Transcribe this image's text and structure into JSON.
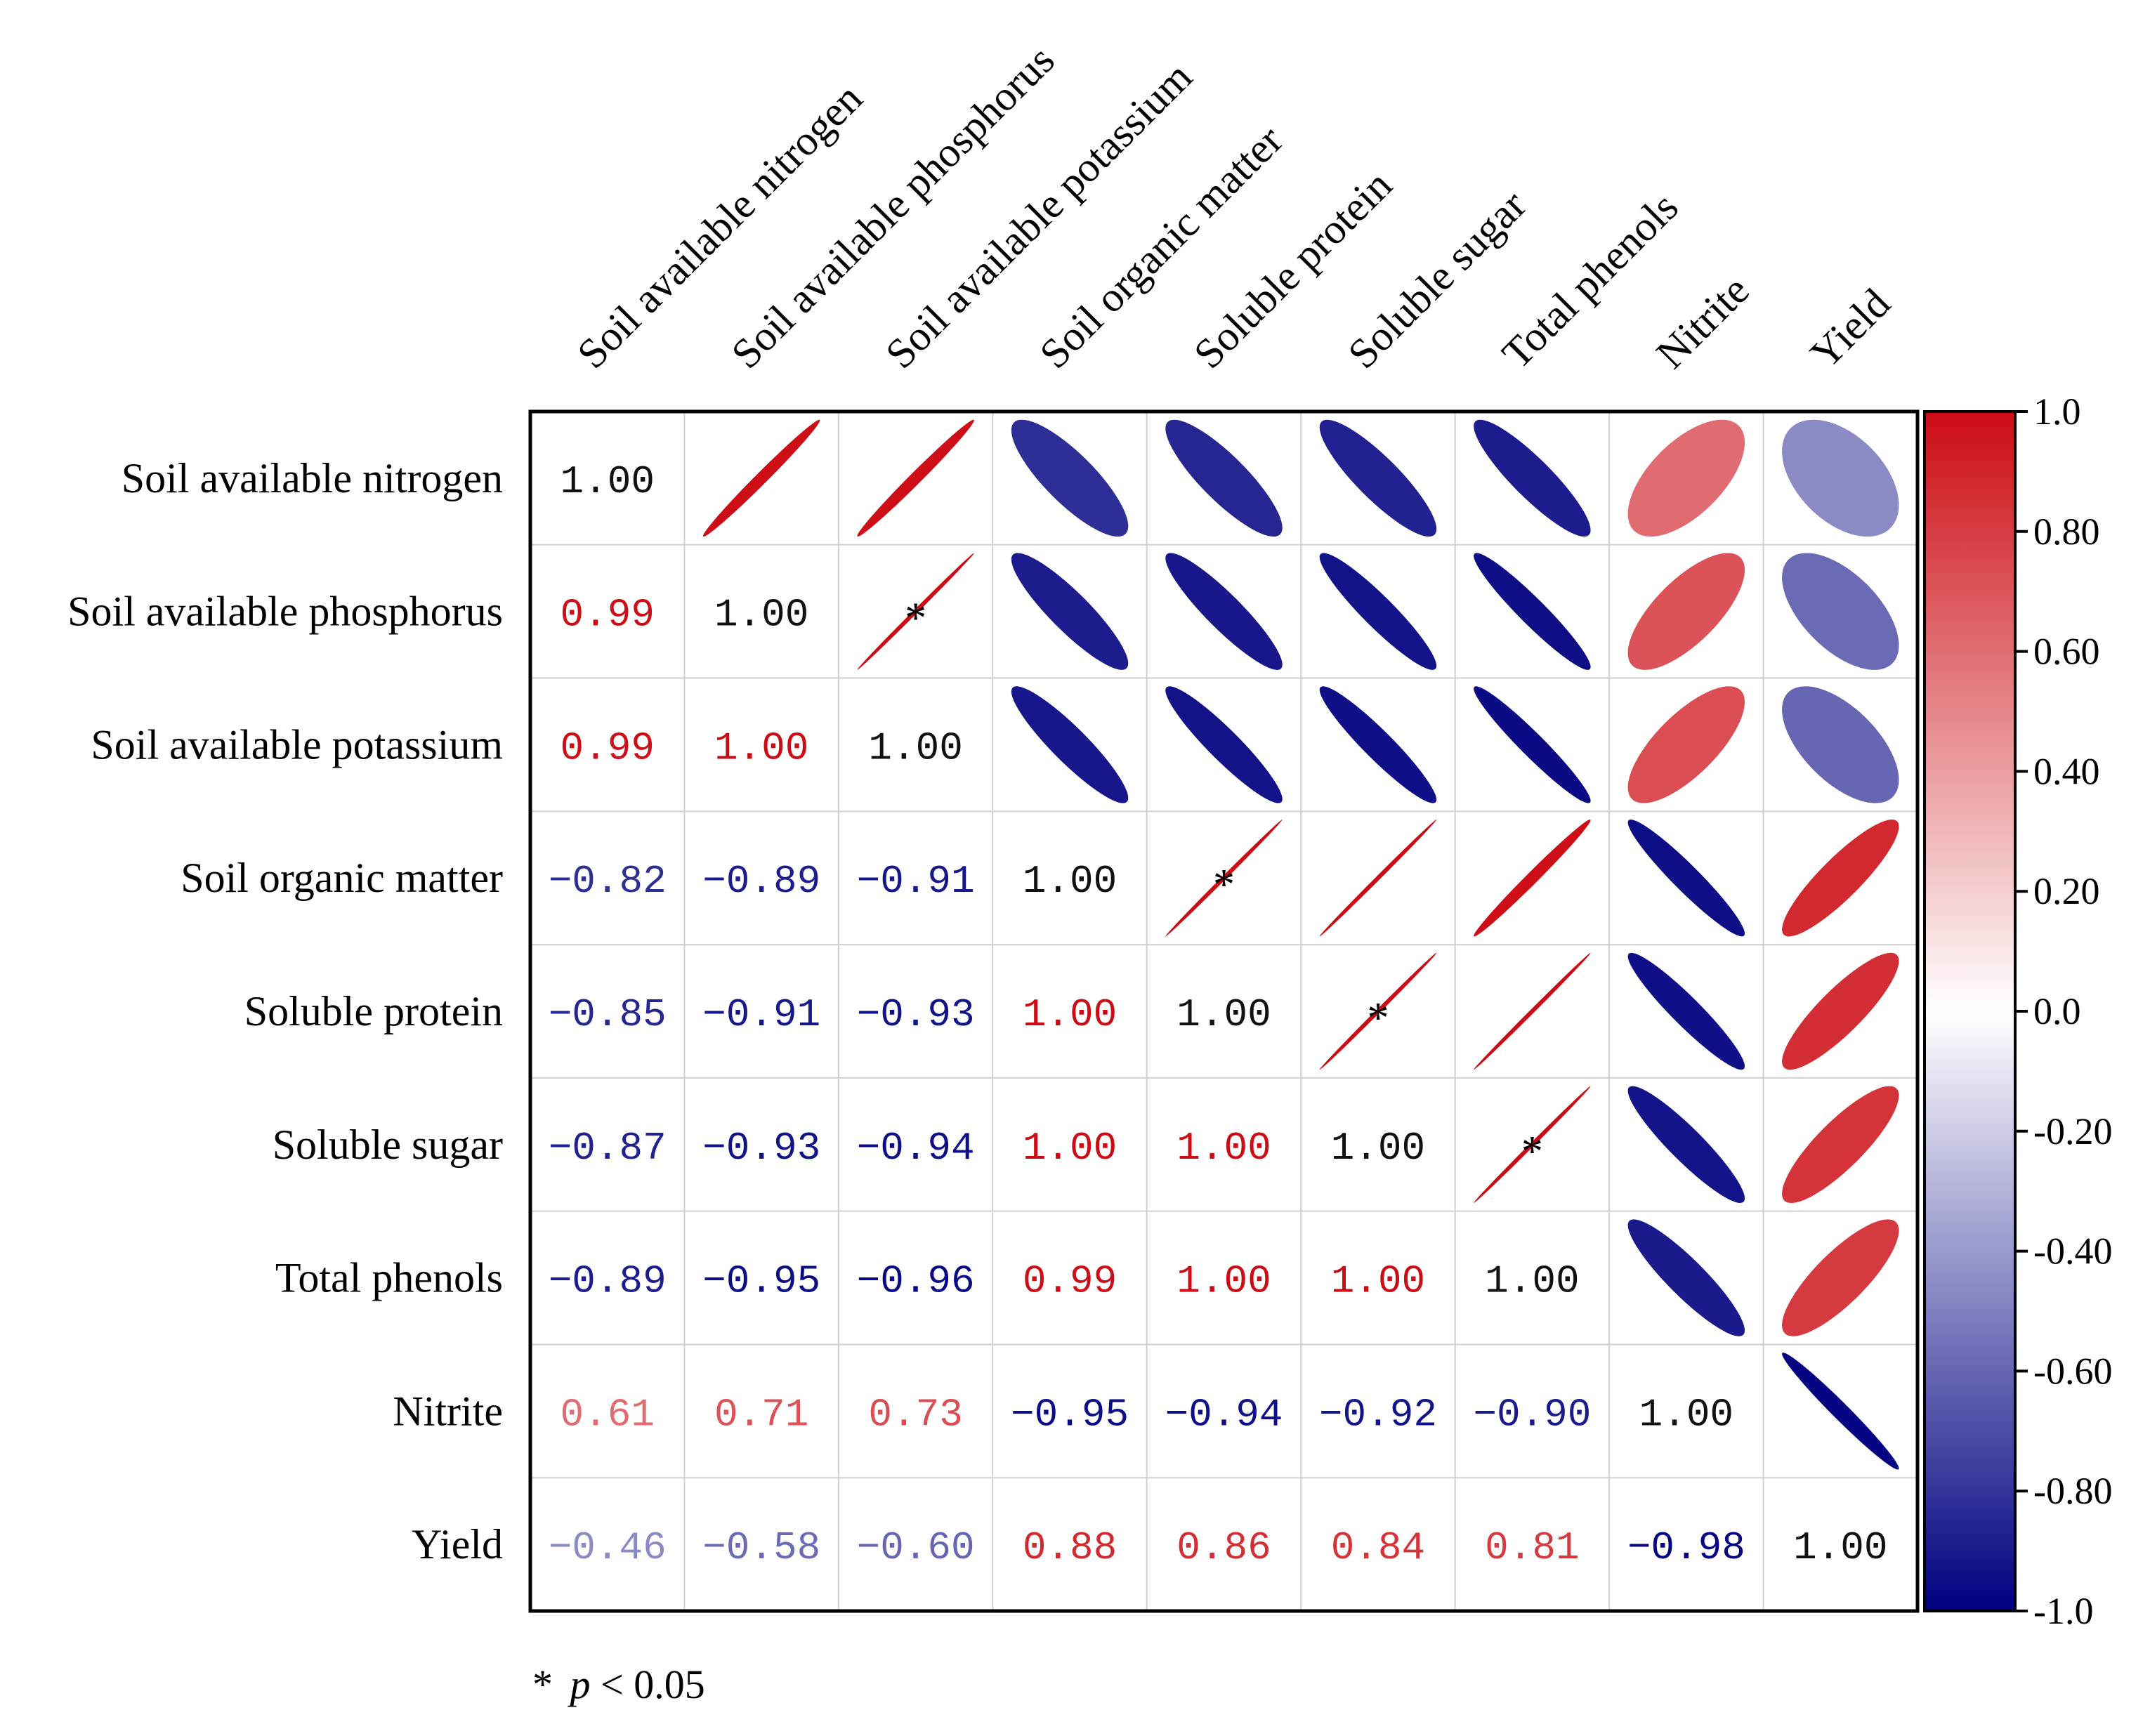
{
  "chart_data": {
    "type": "heatmap",
    "subtype": "correlation-matrix",
    "variables": [
      "Soil available nitrogen",
      "Soil available phosphorus",
      "Soil available potassium",
      "Soil organic matter",
      "Soluble protein",
      "Soluble sugar",
      "Total phenols",
      "Nitrite",
      "Yield"
    ],
    "matrix": [
      [
        1.0,
        0.99,
        0.99,
        -0.82,
        -0.85,
        -0.87,
        -0.89,
        0.61,
        -0.46
      ],
      [
        0.99,
        1.0,
        1.0,
        -0.89,
        -0.91,
        -0.93,
        -0.95,
        0.71,
        -0.58
      ],
      [
        0.99,
        1.0,
        1.0,
        -0.91,
        -0.93,
        -0.94,
        -0.96,
        0.73,
        -0.6
      ],
      [
        -0.82,
        -0.89,
        -0.91,
        1.0,
        1.0,
        1.0,
        0.99,
        -0.95,
        0.88
      ],
      [
        -0.85,
        -0.91,
        -0.93,
        1.0,
        1.0,
        1.0,
        1.0,
        -0.94,
        0.86
      ],
      [
        -0.87,
        -0.93,
        -0.94,
        1.0,
        1.0,
        1.0,
        1.0,
        -0.92,
        0.84
      ],
      [
        -0.89,
        -0.95,
        -0.96,
        0.99,
        1.0,
        1.0,
        1.0,
        -0.9,
        0.81
      ],
      [
        0.61,
        0.71,
        0.73,
        -0.95,
        -0.94,
        -0.92,
        -0.9,
        1.0,
        -0.98
      ],
      [
        -0.46,
        -0.58,
        -0.6,
        0.88,
        0.86,
        0.84,
        0.81,
        -0.98,
        1.0
      ]
    ],
    "lower_labels": [
      [
        null,
        null,
        null,
        null,
        null,
        null,
        null,
        null,
        null
      ],
      [
        "0.99",
        null,
        null,
        null,
        null,
        null,
        null,
        null,
        null
      ],
      [
        "0.99",
        "1.00",
        null,
        null,
        null,
        null,
        null,
        null,
        null
      ],
      [
        "−0.82",
        "−0.89",
        "−0.91",
        null,
        null,
        null,
        null,
        null,
        null
      ],
      [
        "−0.85",
        "−0.91",
        "−0.93",
        "1.00",
        null,
        null,
        null,
        null,
        null
      ],
      [
        "−0.87",
        "−0.93",
        "−0.94",
        "1.00",
        "1.00",
        null,
        null,
        null,
        null
      ],
      [
        "−0.89",
        "−0.95",
        "−0.96",
        "0.99",
        "1.00",
        "1.00",
        null,
        null,
        null
      ],
      [
        "0.61",
        "0.71",
        "0.73",
        "−0.95",
        "−0.94",
        "−0.92",
        "−0.90",
        null,
        null
      ],
      [
        "−0.46",
        "−0.58",
        "−0.60",
        "0.88",
        "0.86",
        "0.84",
        "0.81",
        "−0.98",
        null
      ]
    ],
    "diagonal_label": "1.00",
    "significant_pairs": [
      [
        1,
        2
      ],
      [
        3,
        4
      ],
      [
        4,
        5
      ],
      [
        5,
        6
      ]
    ],
    "significance_marker": "*",
    "upper_glyph": "ellipse",
    "lower_glyph": "number",
    "colorbar": {
      "range": [
        -1.0,
        1.0
      ],
      "ticks": [
        "1.0",
        "0.80",
        "0.60",
        "0.40",
        "0.20",
        "0.0",
        "-0.20",
        "-0.40",
        "-0.60",
        "-0.80",
        "-1.0"
      ],
      "tick_values": [
        1.0,
        0.8,
        0.6,
        0.4,
        0.2,
        0.0,
        -0.2,
        -0.4,
        -0.6,
        -0.8,
        -1.0
      ],
      "low_color": "#000080",
      "mid_color": "#ffffff",
      "high_color": "#cc0c14"
    },
    "footnote": {
      "star": "*",
      "p": "p",
      "rest": " < 0.05"
    }
  }
}
